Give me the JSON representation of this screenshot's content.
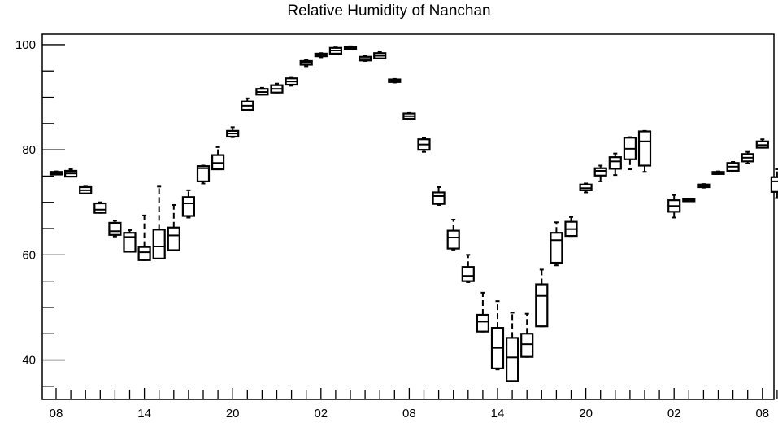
{
  "chart_data": {
    "type": "box",
    "title": "Relative Humidity of Nanchan",
    "xlabel": "",
    "ylabel": "",
    "ylim": [
      32.5,
      102
    ],
    "y_ticks": [
      40,
      60,
      80,
      100
    ],
    "x_tick_labels": [
      "08",
      "14",
      "20",
      "02",
      "08",
      "14",
      "20",
      "02",
      "08"
    ],
    "x_tick_hours": [
      0,
      6,
      12,
      18,
      24,
      30,
      36,
      42,
      48
    ],
    "colors": {
      "box": "#000000",
      "axis": "#000000",
      "background": "#ffffff"
    },
    "boxes": [
      {
        "hour": 0,
        "q1": 75.3,
        "median": 75.6,
        "q3": 75.8,
        "whisker_low": 75.3,
        "whisker_high": 75.9
      },
      {
        "hour": 1,
        "q1": 74.9,
        "median": 75.5,
        "q3": 76.0,
        "whisker_low": 74.9,
        "whisker_high": 76.3
      },
      {
        "hour": 2,
        "q1": 71.7,
        "median": 72.3,
        "q3": 72.9,
        "whisker_low": 71.7,
        "whisker_high": 73.0
      },
      {
        "hour": 3,
        "q1": 68.0,
        "median": 68.6,
        "q3": 69.8,
        "whisker_low": 68.0,
        "whisker_high": 70.0
      },
      {
        "hour": 4,
        "q1": 63.8,
        "median": 64.5,
        "q3": 66.1,
        "whisker_low": 63.5,
        "whisker_high": 66.5
      },
      {
        "hour": 5,
        "q1": 60.6,
        "median": 63.4,
        "q3": 64.2,
        "whisker_low": 60.6,
        "whisker_high": 64.7
      },
      {
        "hour": 6,
        "q1": 59.0,
        "median": 60.5,
        "q3": 61.5,
        "whisker_low": 59.0,
        "whisker_high": 67.5
      },
      {
        "hour": 7,
        "q1": 59.3,
        "median": 61.6,
        "q3": 64.8,
        "whisker_low": 59.3,
        "whisker_high": 73.0
      },
      {
        "hour": 8,
        "q1": 60.9,
        "median": 63.7,
        "q3": 65.2,
        "whisker_low": 60.9,
        "whisker_high": 69.5
      },
      {
        "hour": 9,
        "q1": 67.4,
        "median": 69.8,
        "q3": 71.0,
        "whisker_low": 67.1,
        "whisker_high": 72.3
      },
      {
        "hour": 10,
        "q1": 74.0,
        "median": 76.5,
        "q3": 76.9,
        "whisker_low": 73.6,
        "whisker_high": 77.0
      },
      {
        "hour": 11,
        "q1": 76.3,
        "median": 77.5,
        "q3": 79.0,
        "whisker_low": 76.3,
        "whisker_high": 80.5
      },
      {
        "hour": 12,
        "q1": 82.5,
        "median": 83.1,
        "q3": 83.6,
        "whisker_low": 82.4,
        "whisker_high": 84.3
      },
      {
        "hour": 13,
        "q1": 87.6,
        "median": 88.4,
        "q3": 89.2,
        "whisker_low": 87.5,
        "whisker_high": 89.8
      },
      {
        "hour": 14,
        "q1": 90.5,
        "median": 91.0,
        "q3": 91.6,
        "whisker_low": 90.5,
        "whisker_high": 91.8
      },
      {
        "hour": 15,
        "q1": 90.9,
        "median": 91.6,
        "q3": 92.3,
        "whisker_low": 90.9,
        "whisker_high": 92.6
      },
      {
        "hour": 16,
        "q1": 92.4,
        "median": 93.0,
        "q3": 93.6,
        "whisker_low": 92.2,
        "whisker_high": 93.7
      },
      {
        "hour": 17,
        "q1": 96.2,
        "median": 96.6,
        "q3": 96.9,
        "whisker_low": 95.9,
        "whisker_high": 97.1
      },
      {
        "hour": 18,
        "q1": 97.8,
        "median": 98.0,
        "q3": 98.3,
        "whisker_low": 97.6,
        "whisker_high": 98.4
      },
      {
        "hour": 19,
        "q1": 98.3,
        "median": 98.9,
        "q3": 99.4,
        "whisker_low": 98.3,
        "whisker_high": 99.5
      },
      {
        "hour": 20,
        "q1": 99.2,
        "median": 99.4,
        "q3": 99.6,
        "whisker_low": 99.2,
        "whisker_high": 99.7
      },
      {
        "hour": 21,
        "q1": 97.0,
        "median": 97.3,
        "q3": 97.7,
        "whisker_low": 96.9,
        "whisker_high": 97.9
      },
      {
        "hour": 22,
        "q1": 97.4,
        "median": 97.9,
        "q3": 98.4,
        "whisker_low": 97.4,
        "whisker_high": 98.6
      },
      {
        "hour": 23,
        "q1": 92.9,
        "median": 93.2,
        "q3": 93.4,
        "whisker_low": 92.8,
        "whisker_high": 93.5
      },
      {
        "hour": 24,
        "q1": 85.9,
        "median": 86.4,
        "q3": 86.9,
        "whisker_low": 85.8,
        "whisker_high": 87.0
      },
      {
        "hour": 25,
        "q1": 80.0,
        "median": 81.0,
        "q3": 82.0,
        "whisker_low": 79.6,
        "whisker_high": 82.2
      },
      {
        "hour": 26,
        "q1": 69.7,
        "median": 71.2,
        "q3": 71.9,
        "whisker_low": 69.5,
        "whisker_high": 72.9
      },
      {
        "hour": 27,
        "q1": 61.2,
        "median": 63.3,
        "q3": 64.6,
        "whisker_low": 61.0,
        "whisker_high": 66.7
      },
      {
        "hour": 28,
        "q1": 55.0,
        "median": 56.0,
        "q3": 57.7,
        "whisker_low": 54.8,
        "whisker_high": 60.0
      },
      {
        "hour": 29,
        "q1": 45.4,
        "median": 47.3,
        "q3": 48.6,
        "whisker_low": 45.4,
        "whisker_high": 52.8
      },
      {
        "hour": 30,
        "q1": 38.4,
        "median": 42.3,
        "q3": 46.1,
        "whisker_low": 38.2,
        "whisker_high": 51.2
      },
      {
        "hour": 31,
        "q1": 36.0,
        "median": 40.5,
        "q3": 44.2,
        "whisker_low": 36.0,
        "whisker_high": 49.0
      },
      {
        "hour": 32,
        "q1": 40.6,
        "median": 43.0,
        "q3": 45.0,
        "whisker_low": 40.6,
        "whisker_high": 48.8
      },
      {
        "hour": 33,
        "q1": 46.4,
        "median": 52.2,
        "q3": 54.4,
        "whisker_low": 46.4,
        "whisker_high": 57.2
      },
      {
        "hour": 34,
        "q1": 58.5,
        "median": 62.8,
        "q3": 64.2,
        "whisker_low": 58.0,
        "whisker_high": 66.2
      },
      {
        "hour": 35,
        "q1": 63.6,
        "median": 64.9,
        "q3": 66.3,
        "whisker_low": 63.6,
        "whisker_high": 67.2
      },
      {
        "hour": 36,
        "q1": 72.3,
        "median": 72.7,
        "q3": 73.4,
        "whisker_low": 71.9,
        "whisker_high": 73.6
      },
      {
        "hour": 37,
        "q1": 75.1,
        "median": 76.0,
        "q3": 76.5,
        "whisker_low": 74.0,
        "whisker_high": 77.0
      },
      {
        "hour": 38,
        "q1": 76.4,
        "median": 77.8,
        "q3": 78.6,
        "whisker_low": 75.2,
        "whisker_high": 79.3
      },
      {
        "hour": 39,
        "q1": 78.2,
        "median": 80.2,
        "q3": 82.3,
        "whisker_low": 76.3,
        "whisker_high": 82.4
      },
      {
        "hour": 40,
        "q1": 77.0,
        "median": 81.6,
        "q3": 83.5,
        "whisker_low": 75.8,
        "whisker_high": 83.6
      },
      {
        "hour": 42,
        "q1": 68.2,
        "median": 69.3,
        "q3": 70.4,
        "whisker_low": 67.1,
        "whisker_high": 71.4
      },
      {
        "hour": 43,
        "q1": 70.2,
        "median": 70.4,
        "q3": 70.6,
        "whisker_low": 70.2,
        "whisker_high": 70.6
      },
      {
        "hour": 44,
        "q1": 72.9,
        "median": 73.1,
        "q3": 73.4,
        "whisker_low": 72.8,
        "whisker_high": 73.5
      },
      {
        "hour": 45,
        "q1": 75.4,
        "median": 75.6,
        "q3": 75.8,
        "whisker_low": 75.4,
        "whisker_high": 75.9
      },
      {
        "hour": 46,
        "q1": 76.0,
        "median": 76.8,
        "q3": 77.5,
        "whisker_low": 75.9,
        "whisker_high": 77.7
      },
      {
        "hour": 47,
        "q1": 77.8,
        "median": 78.5,
        "q3": 79.2,
        "whisker_low": 77.4,
        "whisker_high": 79.6
      },
      {
        "hour": 48,
        "q1": 80.4,
        "median": 80.9,
        "q3": 81.6,
        "whisker_low": 80.4,
        "whisker_high": 82.0
      },
      {
        "hour": 49,
        "q1": 72.0,
        "median": 74.0,
        "q3": 74.8,
        "whisker_low": 70.8,
        "whisker_high": 76.3
      }
    ]
  }
}
